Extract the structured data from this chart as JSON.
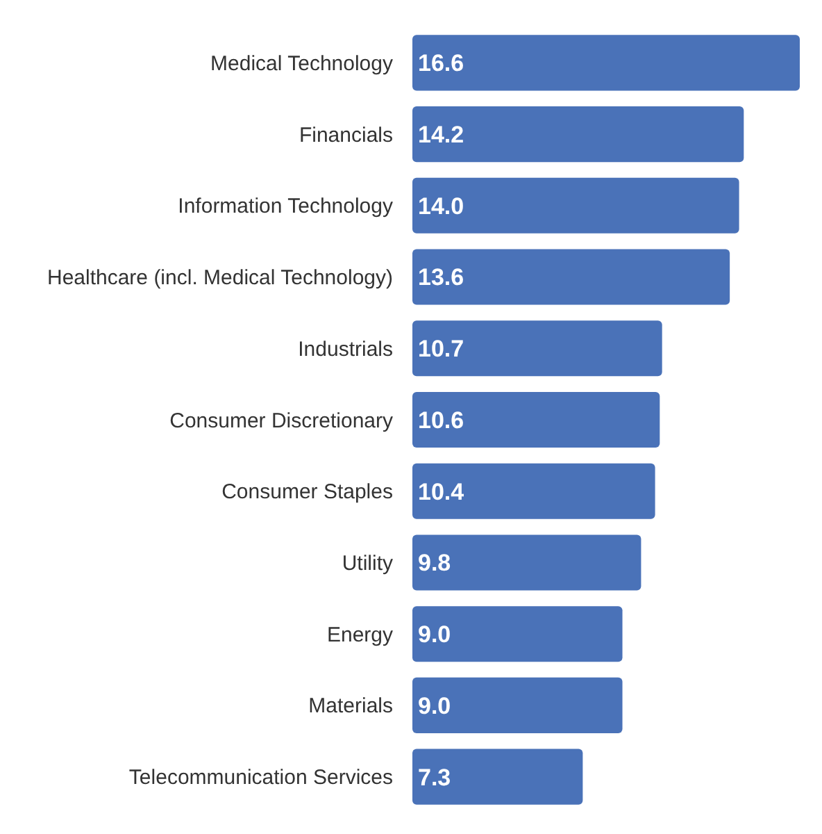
{
  "chart_data": {
    "type": "bar",
    "orientation": "horizontal",
    "color": "#4a72b8",
    "categories": [
      "Medical Technology",
      "Financials",
      "Information Technology",
      "Healthcare (incl. Medical Technology)",
      "Industrials",
      "Consumer Discretionary",
      "Consumer Staples",
      "Utility",
      "Energy",
      "Materials",
      "Telecommunication Services"
    ],
    "values": [
      16.6,
      14.2,
      14.0,
      13.6,
      10.7,
      10.6,
      10.4,
      9.8,
      9.0,
      9.0,
      7.3
    ],
    "value_labels": [
      "16.6",
      "14.2",
      "14.0",
      "13.6",
      "10.7",
      "10.6",
      "10.4",
      "9.8",
      "9.0",
      "9.0",
      "7.3"
    ]
  }
}
